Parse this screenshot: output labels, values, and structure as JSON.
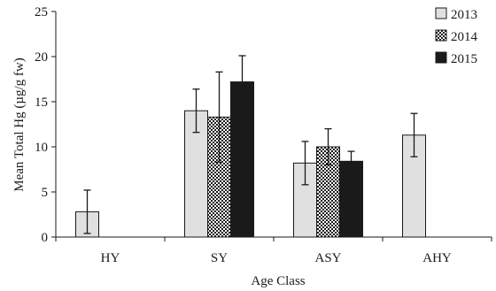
{
  "chart_data": {
    "type": "bar",
    "title": "",
    "xlabel": "Age Class",
    "ylabel": "Mean Total Hg (µg/g fw)",
    "categories": [
      "HY",
      "SY",
      "ASY",
      "AHY"
    ],
    "ylim": [
      0,
      25
    ],
    "yticks": [
      "0",
      "5",
      "10",
      "15",
      "20",
      "25"
    ],
    "grid": false,
    "legend_position": "top-right",
    "series": [
      {
        "name": "2013",
        "pattern": "solid-light-gray",
        "color": "#e0e0e0",
        "values": [
          2.8,
          14.0,
          8.2,
          11.3
        ],
        "errors": [
          2.4,
          2.4,
          2.4,
          2.4
        ]
      },
      {
        "name": "2014",
        "pattern": "checkered",
        "color": "#1a1a1a",
        "values": [
          null,
          13.3,
          10.0,
          null
        ],
        "errors": [
          null,
          5.0,
          2.0,
          null
        ]
      },
      {
        "name": "2015",
        "pattern": "solid-black",
        "color": "#1a1a1a",
        "values": [
          null,
          17.2,
          8.4,
          null
        ],
        "errors": [
          null,
          2.9,
          1.1,
          null
        ]
      }
    ]
  }
}
